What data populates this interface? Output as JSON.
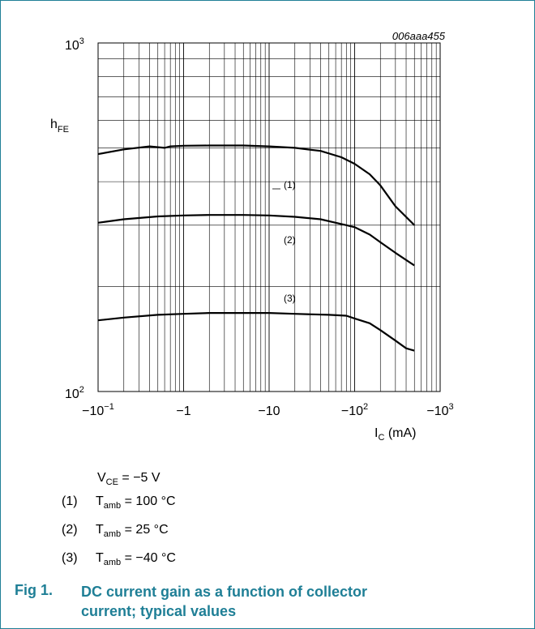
{
  "chart_data": {
    "type": "line",
    "id_label": "006aaa455",
    "y_axis": {
      "label_main": "h",
      "label_sub": "FE",
      "scale": "log",
      "ylim": [
        100,
        1000
      ],
      "tick_labels": [
        {
          "base": "10",
          "exp": "3",
          "value": 1000
        },
        {
          "base": "10",
          "exp": "2",
          "value": 100
        }
      ]
    },
    "x_axis": {
      "label_main": "I",
      "label_sub": "C",
      "label_unit": "(mA)",
      "scale": "log",
      "xlim": [
        -0.1,
        -1000
      ],
      "tick_labels": [
        {
          "text": "−10",
          "exp": "−1",
          "value": -0.1
        },
        {
          "text": "−1",
          "exp": "",
          "value": -1
        },
        {
          "text": "−10",
          "exp": "",
          "value": -10
        },
        {
          "text": "−10",
          "exp": "2",
          "value": -100
        },
        {
          "text": "−10",
          "exp": "3",
          "value": -1000
        }
      ]
    },
    "grid": true,
    "series": [
      {
        "name": "(1)",
        "points": [
          [
            -0.1,
            480
          ],
          [
            -0.2,
            495
          ],
          [
            -0.4,
            505
          ],
          [
            -0.6,
            500
          ],
          [
            -0.7,
            505
          ],
          [
            -1,
            507
          ],
          [
            -2,
            508
          ],
          [
            -5,
            508
          ],
          [
            -10,
            505
          ],
          [
            -20,
            500
          ],
          [
            -40,
            490
          ],
          [
            -70,
            470
          ],
          [
            -100,
            450
          ],
          [
            -150,
            420
          ],
          [
            -200,
            390
          ],
          [
            -300,
            340
          ],
          [
            -500,
            300
          ]
        ]
      },
      {
        "name": "(2)",
        "points": [
          [
            -0.1,
            305
          ],
          [
            -0.2,
            312
          ],
          [
            -0.5,
            318
          ],
          [
            -1,
            320
          ],
          [
            -2,
            321
          ],
          [
            -5,
            321
          ],
          [
            -10,
            320
          ],
          [
            -20,
            317
          ],
          [
            -40,
            312
          ],
          [
            -60,
            305
          ],
          [
            -80,
            300
          ],
          [
            -100,
            296
          ],
          [
            -150,
            282
          ],
          [
            -200,
            268
          ],
          [
            -300,
            250
          ],
          [
            -500,
            230
          ]
        ]
      },
      {
        "name": "(3)",
        "points": [
          [
            -0.1,
            160
          ],
          [
            -0.2,
            163
          ],
          [
            -0.5,
            166
          ],
          [
            -1,
            167
          ],
          [
            -2,
            168
          ],
          [
            -5,
            168
          ],
          [
            -10,
            168
          ],
          [
            -20,
            167
          ],
          [
            -50,
            166
          ],
          [
            -80,
            165
          ],
          [
            -100,
            162
          ],
          [
            -150,
            157
          ],
          [
            -200,
            150
          ],
          [
            -300,
            140
          ],
          [
            -400,
            133
          ],
          [
            -500,
            131
          ]
        ]
      }
    ]
  },
  "conditions": {
    "vce": {
      "main": "V",
      "sub": "CE",
      "value": " = −5 V"
    },
    "items": [
      {
        "num": "(1)",
        "main": "T",
        "sub": "amb",
        "value": " = 100 °C"
      },
      {
        "num": "(2)",
        "main": "T",
        "sub": "amb",
        "value": " = 25 °C"
      },
      {
        "num": "(3)",
        "main": "T",
        "sub": "amb",
        "value": " = −40 °C"
      }
    ]
  },
  "figure": {
    "number": "Fig 1.",
    "title": "DC current gain as a function of collector current; typical values"
  }
}
